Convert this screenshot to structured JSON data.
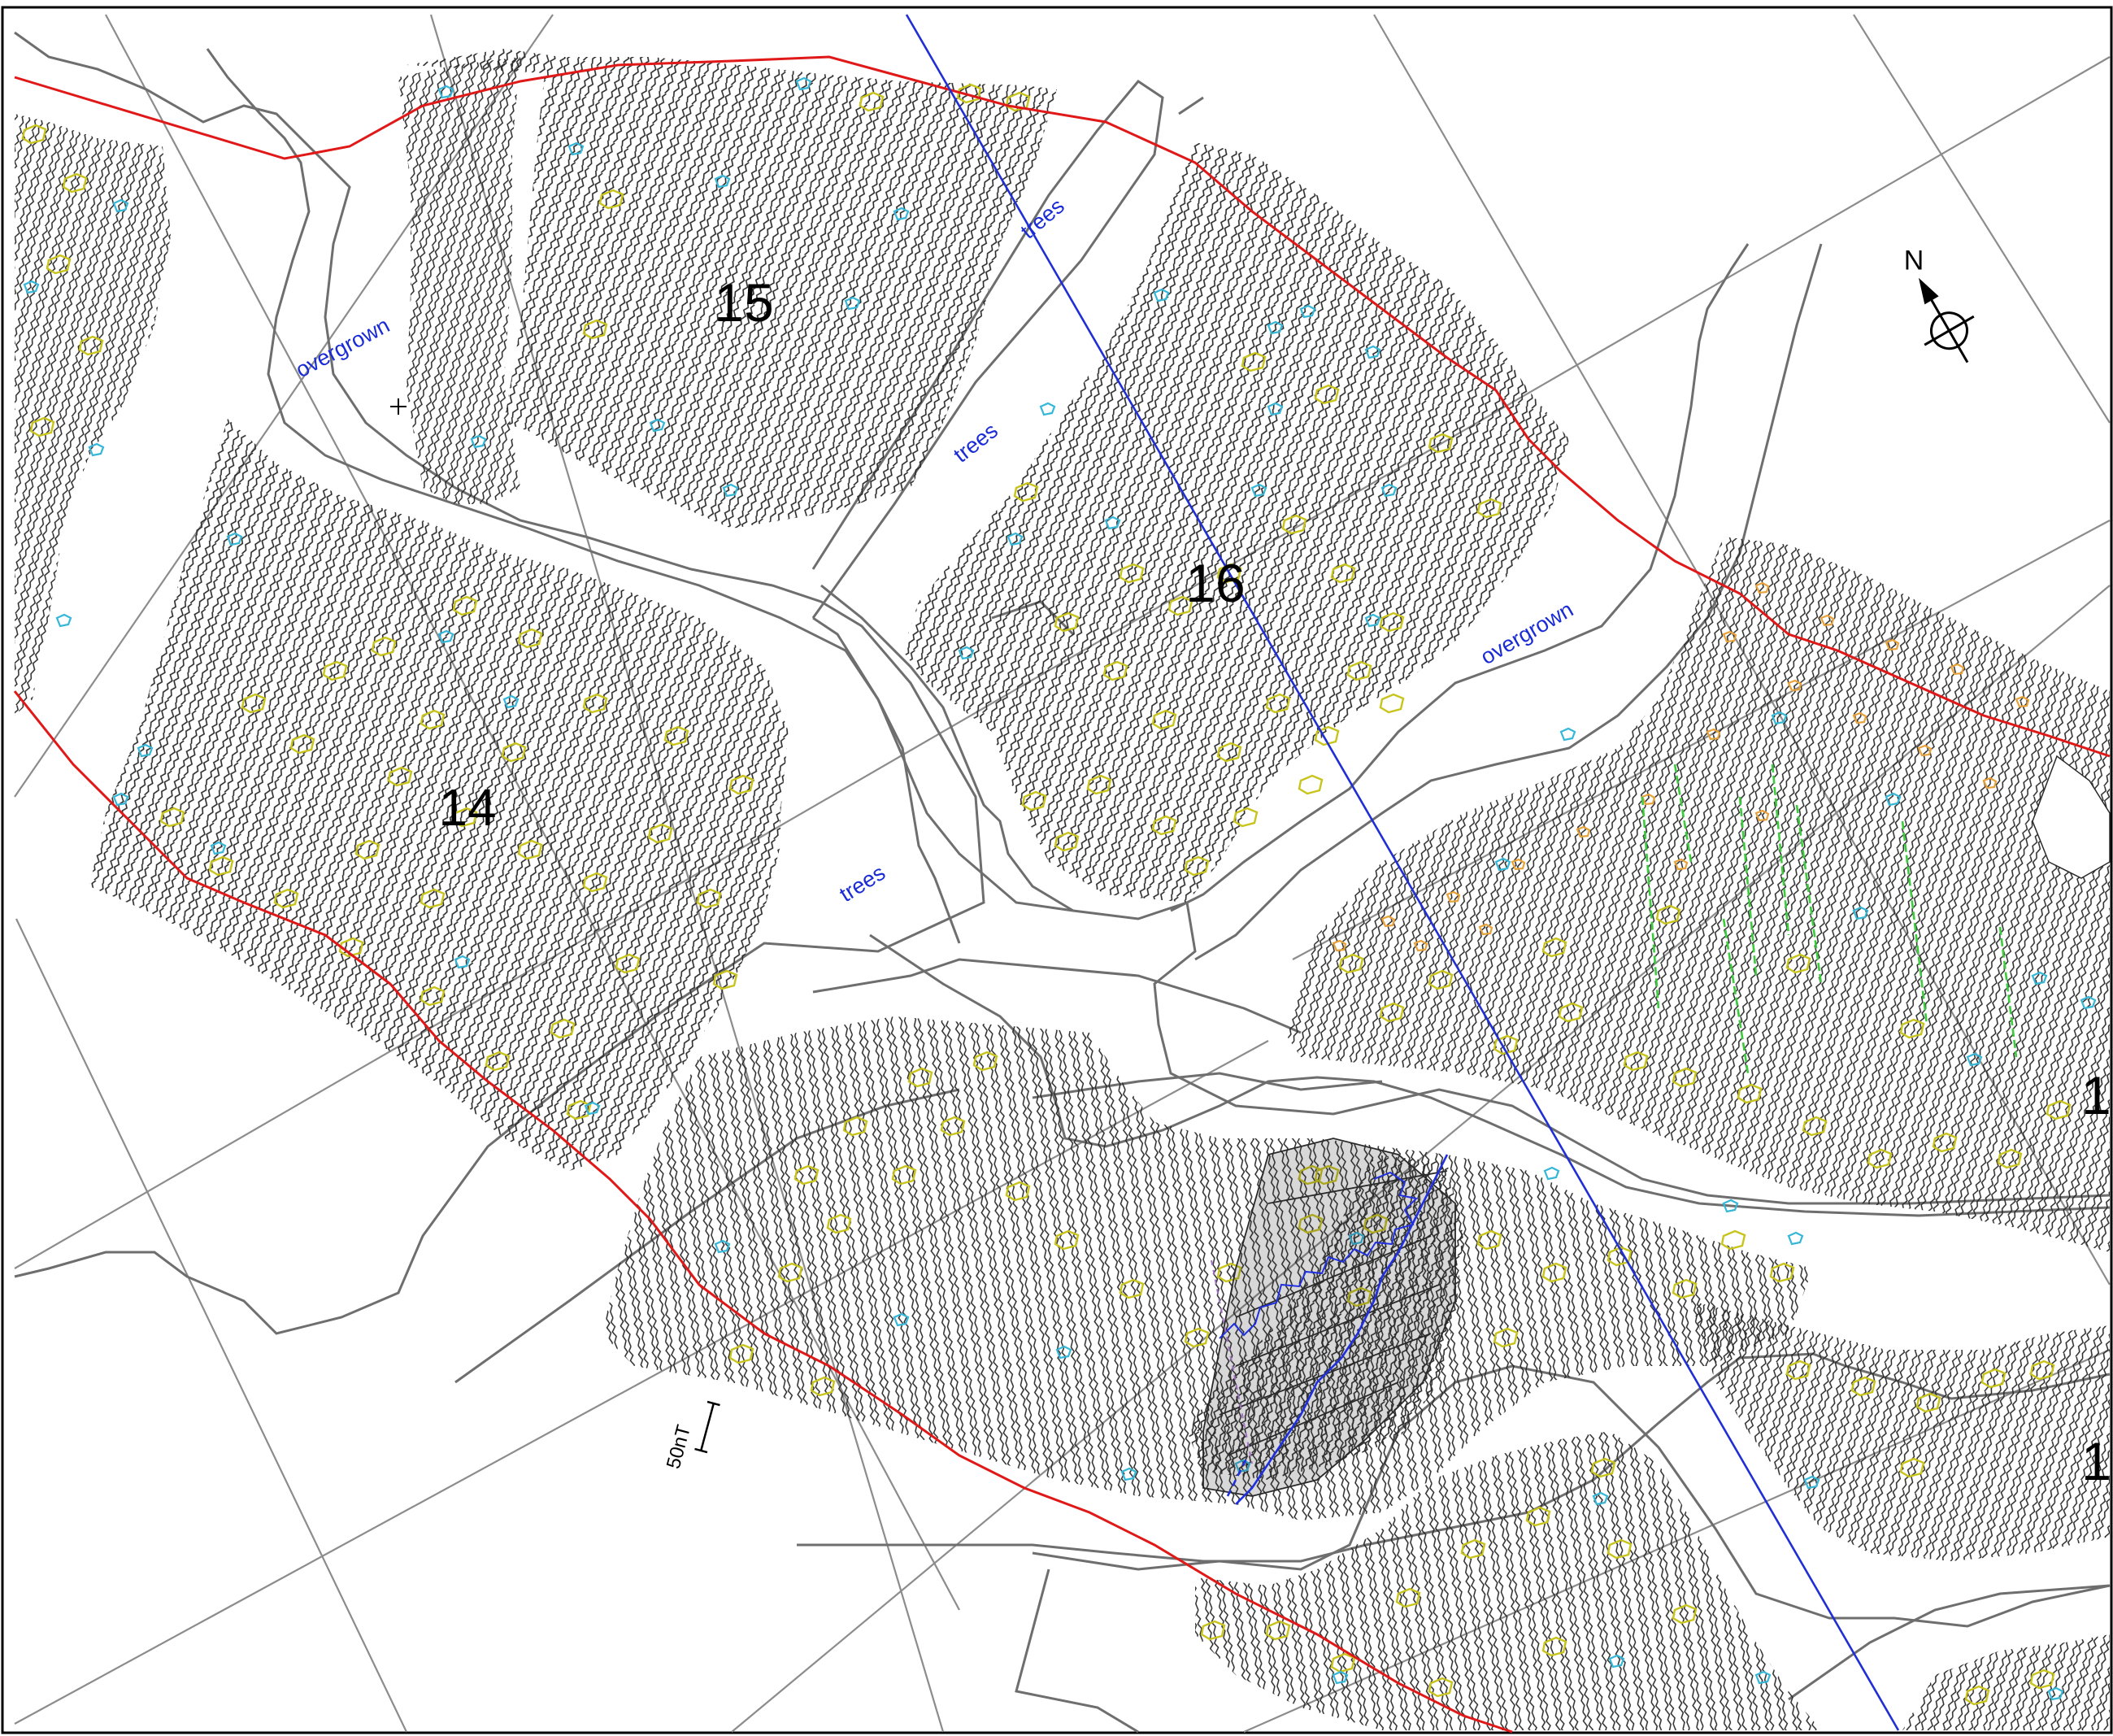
{
  "colors": {
    "background": "#ffffff",
    "boundary": "#e01818",
    "transect": "#1f2fd4",
    "field_edge": "#6e6e6e",
    "grid": "#8c8c8c",
    "trace": "#2a2a2a",
    "anomaly_positive": "#c8c41c",
    "anomaly_negative": "#35b7d8",
    "anomaly_orange": "#e8a23a",
    "feature_green": "#3ccb3c",
    "feature_blue": "#2030e0"
  },
  "areas": [
    {
      "id": "area-14",
      "label": "14"
    },
    {
      "id": "area-15",
      "label": "15"
    },
    {
      "id": "area-16",
      "label": "16"
    },
    {
      "id": "area-right-upper",
      "label": "1"
    },
    {
      "id": "area-right-lower",
      "label": "1"
    }
  ],
  "annotations": {
    "overgrown_left": "overgrown",
    "overgrown_right": "overgrown",
    "trees_upper": "trees",
    "trees_middle": "trees",
    "trees_lower": "trees"
  },
  "north_arrow": {
    "label": "N",
    "icon": "north-arrow-icon"
  },
  "scale_bar": {
    "label": "50nT",
    "icon": "scale-bar-icon"
  }
}
